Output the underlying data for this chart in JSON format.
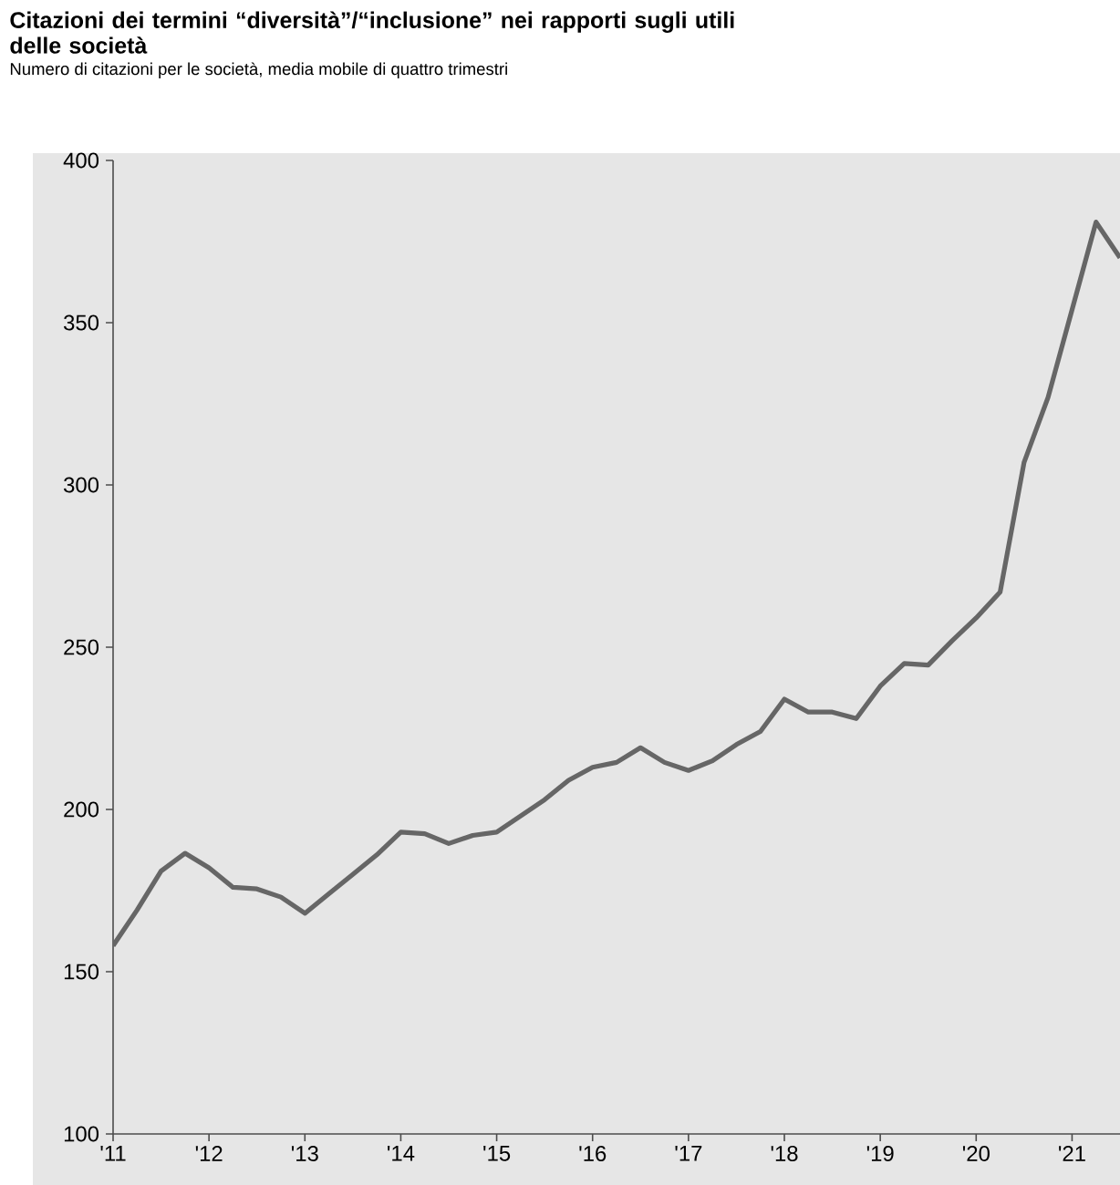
{
  "chart_data": {
    "type": "line",
    "title": "Citazioni dei termini “diversità”/“inclusione” nei rapporti sugli utili delle società",
    "subtitle": "Numero di citazioni per le società, media mobile di quattro trimestri",
    "x": [
      2011,
      2011.25,
      2011.5,
      2011.75,
      2012,
      2012.25,
      2012.5,
      2012.75,
      2013,
      2013.25,
      2013.5,
      2013.75,
      2014,
      2014.25,
      2014.5,
      2014.75,
      2015,
      2015.25,
      2015.5,
      2015.75,
      2016,
      2016.25,
      2016.5,
      2016.75,
      2017,
      2017.25,
      2017.5,
      2017.75,
      2018,
      2018.25,
      2018.5,
      2018.75,
      2019,
      2019.25,
      2019.5,
      2019.75,
      2020,
      2020.25,
      2020.5,
      2020.75,
      2021,
      2021.25,
      2021.5
    ],
    "series": [
      {
        "color": "#666666",
        "values": [
          158,
          169,
          181,
          186.5,
          182,
          176,
          175.5,
          173,
          168,
          174,
          180,
          186,
          193,
          192.5,
          189.5,
          192,
          193,
          198,
          203,
          209,
          213,
          214.5,
          219,
          214.5,
          212,
          215,
          220,
          224,
          234,
          230,
          230,
          228,
          238,
          245,
          244.5,
          252,
          259,
          267,
          307,
          327,
          354,
          381,
          370
        ]
      }
    ],
    "xlim": [
      2011,
      2021.5
    ],
    "xticks": [
      {
        "value": 2011,
        "label": "'11"
      },
      {
        "value": 2012,
        "label": "'12"
      },
      {
        "value": 2013,
        "label": "'13"
      },
      {
        "value": 2014,
        "label": "'14"
      },
      {
        "value": 2015,
        "label": "'15"
      },
      {
        "value": 2016,
        "label": "'16"
      },
      {
        "value": 2017,
        "label": "'17"
      },
      {
        "value": 2018,
        "label": "'18"
      },
      {
        "value": 2019,
        "label": "'19"
      },
      {
        "value": 2020,
        "label": "'20"
      },
      {
        "value": 2021,
        "label": "'21"
      }
    ],
    "ylim": [
      100,
      400
    ],
    "yticks": [
      100,
      150,
      200,
      250,
      300,
      350,
      400
    ],
    "grid": false,
    "marker": "none",
    "line_style": "solid"
  }
}
